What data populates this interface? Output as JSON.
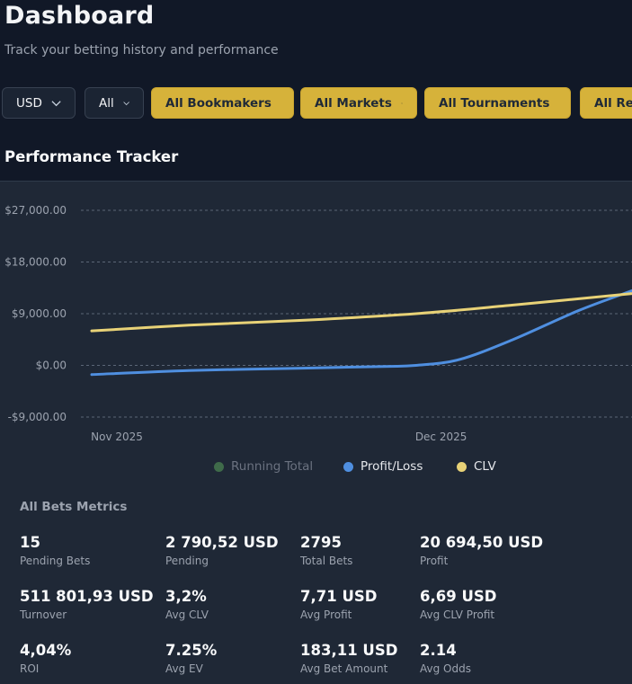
{
  "header": {
    "title": "Dashboard",
    "subtitle": "Track your betting history and performance"
  },
  "filters": {
    "currency": "USD",
    "scope": "All",
    "bookmakers": "All Bookmakers",
    "markets": "All Markets",
    "tournaments": "All Tournaments",
    "results": "All Res"
  },
  "section_title": "Performance Tracker",
  "chart_data": {
    "type": "line",
    "y_tick_labels": [
      "$27,000.00",
      "$18,000.00",
      "$9,000.00",
      "$0.00",
      "-$9,000.00"
    ],
    "y_ticks": [
      27000,
      18000,
      9000,
      0,
      -9000
    ],
    "x_tick_labels": [
      "Nov 2025",
      "Dec 2025"
    ],
    "ylim": [
      -9000,
      27000
    ],
    "grid": "horizontal dashed",
    "legend_position": "bottom-center",
    "series": [
      {
        "name": "Running Total",
        "color": "#3f6b4a",
        "hidden": true,
        "points": []
      },
      {
        "name": "Profit/Loss",
        "color": "#4f8fe0",
        "points": [
          {
            "x": "2025-11-01",
            "y": -1600
          },
          {
            "x": "2025-11-10",
            "y": -900
          },
          {
            "x": "2025-11-20",
            "y": -500
          },
          {
            "x": "2025-11-28",
            "y": -200
          },
          {
            "x": "2025-12-01",
            "y": 0
          },
          {
            "x": "2025-12-05",
            "y": 1000
          },
          {
            "x": "2025-12-10",
            "y": 4500
          },
          {
            "x": "2025-12-16",
            "y": 9500
          },
          {
            "x": "2025-12-21",
            "y": 13000
          }
        ]
      },
      {
        "name": "CLV",
        "color": "#e8d277",
        "points": [
          {
            "x": "2025-11-01",
            "y": 6000
          },
          {
            "x": "2025-11-10",
            "y": 7000
          },
          {
            "x": "2025-11-20",
            "y": 7800
          },
          {
            "x": "2025-12-01",
            "y": 9000
          },
          {
            "x": "2025-12-10",
            "y": 10500
          },
          {
            "x": "2025-12-21",
            "y": 12500
          }
        ]
      }
    ]
  },
  "legend": {
    "running_total": "Running Total",
    "profit_loss": "Profit/Loss",
    "clv": "CLV"
  },
  "metrics": {
    "title": "All Bets Metrics",
    "items": [
      {
        "value": "15",
        "label": "Pending Bets"
      },
      {
        "value": "2 790,52 USD",
        "label": "Pending"
      },
      {
        "value": "2795",
        "label": "Total Bets"
      },
      {
        "value": "20 694,50 USD",
        "label": "Profit"
      },
      {
        "value": "511 801,93 USD",
        "label": "Turnover"
      },
      {
        "value": "3,2%",
        "label": "Avg CLV"
      },
      {
        "value": "7,71 USD",
        "label": "Avg Profit"
      },
      {
        "value": "6,69 USD",
        "label": "Avg CLV Profit"
      },
      {
        "value": "4,04%",
        "label": "ROI"
      },
      {
        "value": "7.25%",
        "label": "Avg EV"
      },
      {
        "value": "183,11 USD",
        "label": "Avg Bet Amount"
      },
      {
        "value": "2.14",
        "label": "Avg Odds"
      }
    ]
  },
  "colors": {
    "background": "#111827",
    "panel": "#1f2836",
    "accent_gold": "#d6b23a"
  }
}
